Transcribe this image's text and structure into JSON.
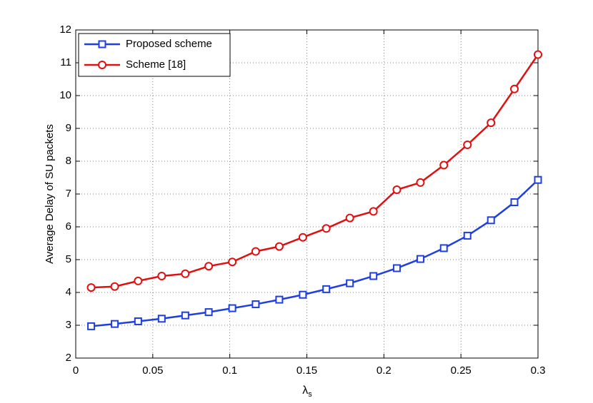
{
  "chart_data": {
    "type": "line",
    "x_label": "λ",
    "x_label_subscript": "s",
    "y_label": "Average Delay of SU packets",
    "x": [
      0.01,
      0.0253,
      0.0405,
      0.0558,
      0.0711,
      0.0863,
      0.1016,
      0.1168,
      0.1321,
      0.1474,
      0.1626,
      0.1779,
      0.1932,
      0.2084,
      0.2237,
      0.2389,
      0.2542,
      0.2695,
      0.2847,
      0.3
    ],
    "series": [
      {
        "name": "Proposed scheme",
        "color": "#1f3fe0",
        "marker": "square",
        "values": [
          2.97,
          3.04,
          3.12,
          3.2,
          3.3,
          3.4,
          3.52,
          3.64,
          3.78,
          3.93,
          4.1,
          4.28,
          4.5,
          4.74,
          5.02,
          5.35,
          5.73,
          6.2,
          6.75,
          7.43
        ]
      },
      {
        "name": "Scheme [18]",
        "color": "#e01010",
        "marker": "circle",
        "values": [
          4.15,
          4.18,
          4.35,
          4.5,
          4.57,
          4.8,
          4.93,
          5.25,
          5.4,
          5.68,
          5.95,
          6.27,
          6.47,
          7.13,
          7.35,
          7.88,
          8.5,
          9.17,
          10.2,
          11.25
        ]
      }
    ],
    "xlim": [
      0,
      0.3
    ],
    "xticks": [
      0,
      0.05,
      0.1,
      0.15,
      0.2,
      0.25,
      0.3
    ],
    "ylim": [
      2,
      12
    ],
    "yticks": [
      2,
      3,
      4,
      5,
      6,
      7,
      8,
      9,
      10,
      11,
      12
    ],
    "grid": true,
    "legend": "top-left"
  }
}
